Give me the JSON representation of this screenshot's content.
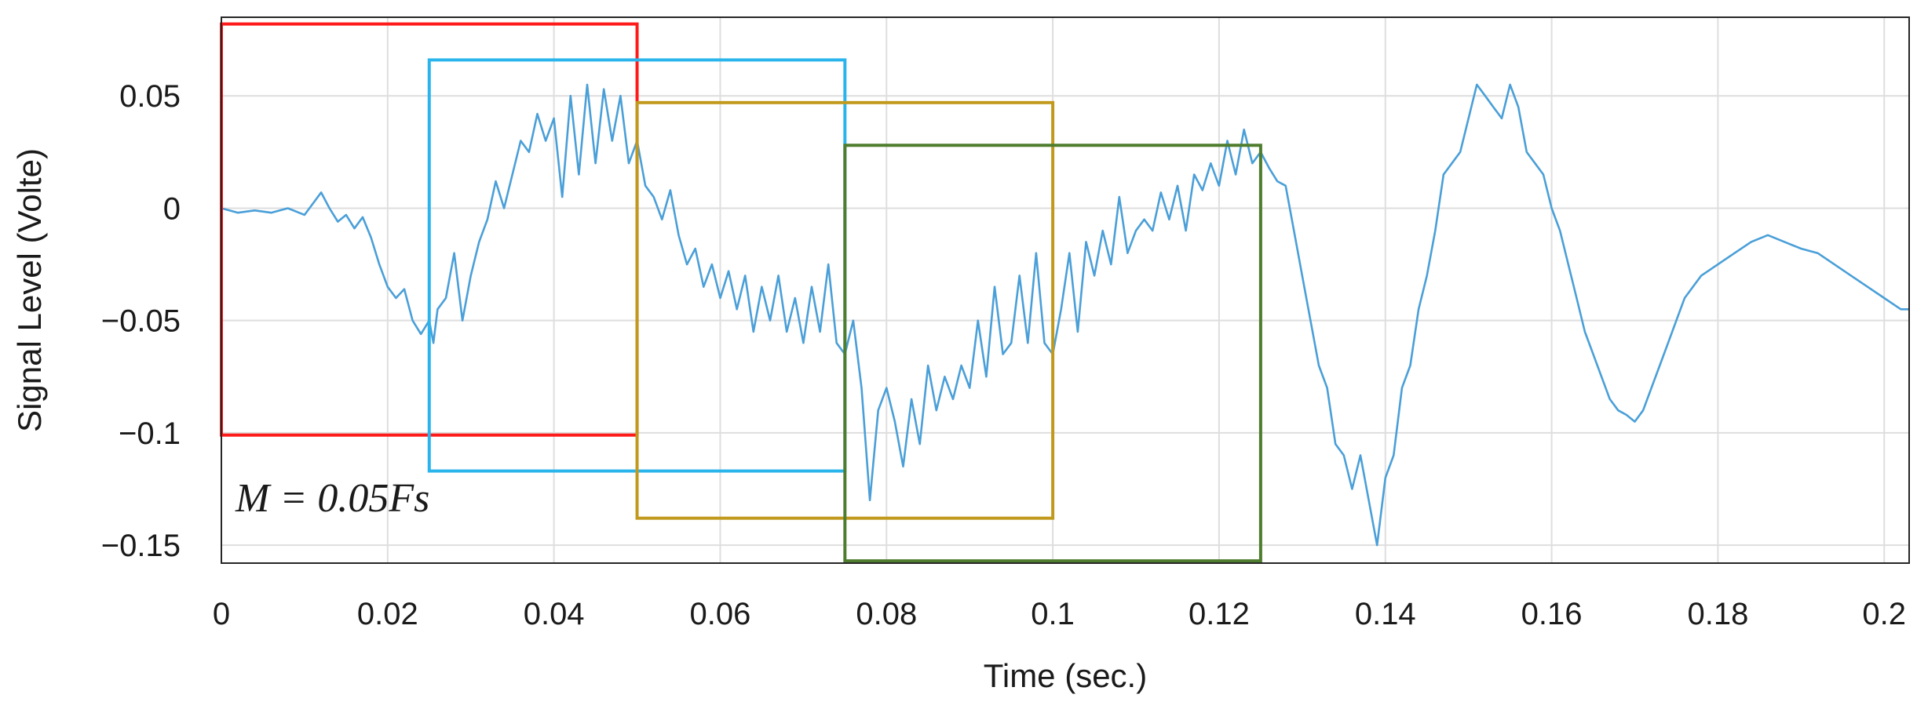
{
  "chart_data": {
    "type": "line",
    "title": "",
    "xlabel": "Time (sec.)",
    "ylabel": "Signal Level (Volte)",
    "xlim": [
      0,
      0.203
    ],
    "ylim": [
      -0.158,
      0.085
    ],
    "grid": true,
    "x_ticks": [
      0,
      0.02,
      0.04,
      0.06,
      0.08,
      0.1,
      0.12,
      0.14,
      0.16,
      0.18,
      0.2
    ],
    "x_tick_labels": [
      "0",
      "0.02",
      "0.04",
      "0.06",
      "0.08",
      "0.1",
      "0.12",
      "0.14",
      "0.16",
      "0.18",
      "0.2"
    ],
    "y_ticks": [
      0.05,
      0,
      -0.05,
      -0.1,
      -0.15
    ],
    "y_tick_labels": [
      "0.05",
      "0",
      "−0.05",
      "−0.1",
      "−0.15"
    ],
    "annotation": "M = 0.05Fs",
    "line_color": "#4a9fd8",
    "series": [
      {
        "values": [
          [
            0.0,
            0.0
          ],
          [
            0.002,
            -0.002
          ],
          [
            0.004,
            -0.001
          ],
          [
            0.006,
            -0.002
          ],
          [
            0.008,
            0.0
          ],
          [
            0.01,
            -0.003
          ],
          [
            0.012,
            0.007
          ],
          [
            0.013,
            0.0
          ],
          [
            0.014,
            -0.006
          ],
          [
            0.015,
            -0.003
          ],
          [
            0.016,
            -0.009
          ],
          [
            0.017,
            -0.004
          ],
          [
            0.018,
            -0.013
          ],
          [
            0.019,
            -0.025
          ],
          [
            0.02,
            -0.035
          ],
          [
            0.021,
            -0.04
          ],
          [
            0.022,
            -0.036
          ],
          [
            0.023,
            -0.05
          ],
          [
            0.024,
            -0.056
          ],
          [
            0.025,
            -0.05
          ],
          [
            0.0255,
            -0.06
          ],
          [
            0.026,
            -0.045
          ],
          [
            0.027,
            -0.04
          ],
          [
            0.028,
            -0.02
          ],
          [
            0.029,
            -0.05
          ],
          [
            0.03,
            -0.03
          ],
          [
            0.031,
            -0.015
          ],
          [
            0.032,
            -0.005
          ],
          [
            0.033,
            0.012
          ],
          [
            0.034,
            0.0
          ],
          [
            0.035,
            0.015
          ],
          [
            0.036,
            0.03
          ],
          [
            0.037,
            0.025
          ],
          [
            0.038,
            0.042
          ],
          [
            0.039,
            0.03
          ],
          [
            0.04,
            0.04
          ],
          [
            0.041,
            0.005
          ],
          [
            0.042,
            0.05
          ],
          [
            0.043,
            0.015
          ],
          [
            0.044,
            0.055
          ],
          [
            0.045,
            0.02
          ],
          [
            0.046,
            0.053
          ],
          [
            0.047,
            0.03
          ],
          [
            0.048,
            0.05
          ],
          [
            0.049,
            0.02
          ],
          [
            0.05,
            0.03
          ],
          [
            0.051,
            0.01
          ],
          [
            0.052,
            0.005
          ],
          [
            0.053,
            -0.005
          ],
          [
            0.054,
            0.008
          ],
          [
            0.055,
            -0.012
          ],
          [
            0.056,
            -0.025
          ],
          [
            0.057,
            -0.018
          ],
          [
            0.058,
            -0.035
          ],
          [
            0.059,
            -0.025
          ],
          [
            0.06,
            -0.04
          ],
          [
            0.061,
            -0.028
          ],
          [
            0.062,
            -0.045
          ],
          [
            0.063,
            -0.03
          ],
          [
            0.064,
            -0.055
          ],
          [
            0.065,
            -0.035
          ],
          [
            0.066,
            -0.05
          ],
          [
            0.067,
            -0.03
          ],
          [
            0.068,
            -0.055
          ],
          [
            0.069,
            -0.04
          ],
          [
            0.07,
            -0.06
          ],
          [
            0.071,
            -0.035
          ],
          [
            0.072,
            -0.055
          ],
          [
            0.073,
            -0.025
          ],
          [
            0.074,
            -0.06
          ],
          [
            0.075,
            -0.065
          ],
          [
            0.076,
            -0.05
          ],
          [
            0.077,
            -0.08
          ],
          [
            0.078,
            -0.13
          ],
          [
            0.079,
            -0.09
          ],
          [
            0.08,
            -0.08
          ],
          [
            0.081,
            -0.095
          ],
          [
            0.082,
            -0.115
          ],
          [
            0.083,
            -0.085
          ],
          [
            0.084,
            -0.105
          ],
          [
            0.085,
            -0.07
          ],
          [
            0.086,
            -0.09
          ],
          [
            0.087,
            -0.075
          ],
          [
            0.088,
            -0.085
          ],
          [
            0.089,
            -0.07
          ],
          [
            0.09,
            -0.08
          ],
          [
            0.091,
            -0.05
          ],
          [
            0.092,
            -0.075
          ],
          [
            0.093,
            -0.035
          ],
          [
            0.094,
            -0.065
          ],
          [
            0.095,
            -0.06
          ],
          [
            0.096,
            -0.03
          ],
          [
            0.097,
            -0.06
          ],
          [
            0.098,
            -0.02
          ],
          [
            0.099,
            -0.06
          ],
          [
            0.1,
            -0.065
          ],
          [
            0.101,
            -0.045
          ],
          [
            0.102,
            -0.02
          ],
          [
            0.103,
            -0.055
          ],
          [
            0.104,
            -0.015
          ],
          [
            0.105,
            -0.03
          ],
          [
            0.106,
            -0.01
          ],
          [
            0.107,
            -0.025
          ],
          [
            0.108,
            0.005
          ],
          [
            0.109,
            -0.02
          ],
          [
            0.11,
            -0.01
          ],
          [
            0.111,
            -0.005
          ],
          [
            0.112,
            -0.01
          ],
          [
            0.113,
            0.007
          ],
          [
            0.114,
            -0.005
          ],
          [
            0.115,
            0.01
          ],
          [
            0.116,
            -0.01
          ],
          [
            0.117,
            0.015
          ],
          [
            0.118,
            0.008
          ],
          [
            0.119,
            0.02
          ],
          [
            0.12,
            0.01
          ],
          [
            0.121,
            0.03
          ],
          [
            0.122,
            0.015
          ],
          [
            0.123,
            0.035
          ],
          [
            0.124,
            0.02
          ],
          [
            0.125,
            0.025
          ],
          [
            0.126,
            0.018
          ],
          [
            0.127,
            0.012
          ],
          [
            0.128,
            0.01
          ],
          [
            0.129,
            -0.01
          ],
          [
            0.13,
            -0.03
          ],
          [
            0.131,
            -0.05
          ],
          [
            0.132,
            -0.07
          ],
          [
            0.133,
            -0.08
          ],
          [
            0.134,
            -0.105
          ],
          [
            0.135,
            -0.11
          ],
          [
            0.136,
            -0.125
          ],
          [
            0.137,
            -0.11
          ],
          [
            0.138,
            -0.13
          ],
          [
            0.139,
            -0.15
          ],
          [
            0.14,
            -0.12
          ],
          [
            0.141,
            -0.11
          ],
          [
            0.142,
            -0.08
          ],
          [
            0.143,
            -0.07
          ],
          [
            0.144,
            -0.045
          ],
          [
            0.145,
            -0.03
          ],
          [
            0.146,
            -0.01
          ],
          [
            0.147,
            0.015
          ],
          [
            0.148,
            0.02
          ],
          [
            0.149,
            0.025
          ],
          [
            0.15,
            0.04
          ],
          [
            0.151,
            0.055
          ],
          [
            0.152,
            0.05
          ],
          [
            0.153,
            0.045
          ],
          [
            0.154,
            0.04
          ],
          [
            0.155,
            0.055
          ],
          [
            0.156,
            0.045
          ],
          [
            0.157,
            0.025
          ],
          [
            0.158,
            0.02
          ],
          [
            0.159,
            0.015
          ],
          [
            0.16,
            0.0
          ],
          [
            0.161,
            -0.01
          ],
          [
            0.162,
            -0.025
          ],
          [
            0.163,
            -0.04
          ],
          [
            0.164,
            -0.055
          ],
          [
            0.165,
            -0.065
          ],
          [
            0.166,
            -0.075
          ],
          [
            0.167,
            -0.085
          ],
          [
            0.168,
            -0.09
          ],
          [
            0.169,
            -0.092
          ],
          [
            0.17,
            -0.095
          ],
          [
            0.171,
            -0.09
          ],
          [
            0.172,
            -0.08
          ],
          [
            0.173,
            -0.07
          ],
          [
            0.174,
            -0.06
          ],
          [
            0.175,
            -0.05
          ],
          [
            0.176,
            -0.04
          ],
          [
            0.178,
            -0.03
          ],
          [
            0.18,
            -0.025
          ],
          [
            0.182,
            -0.02
          ],
          [
            0.184,
            -0.015
          ],
          [
            0.186,
            -0.012
          ],
          [
            0.188,
            -0.015
          ],
          [
            0.19,
            -0.018
          ],
          [
            0.192,
            -0.02
          ],
          [
            0.194,
            -0.025
          ],
          [
            0.196,
            -0.03
          ],
          [
            0.198,
            -0.035
          ],
          [
            0.2,
            -0.04
          ],
          [
            0.202,
            -0.045
          ],
          [
            0.203,
            -0.045
          ]
        ]
      }
    ],
    "windows": [
      {
        "x_start": 0.0,
        "x_end": 0.05,
        "y_top": 0.082,
        "y_bottom": -0.101,
        "color": "#ff1a1a"
      },
      {
        "x_start": 0.025,
        "x_end": 0.075,
        "y_top": 0.066,
        "y_bottom": -0.117,
        "color": "#2ab4ec"
      },
      {
        "x_start": 0.05,
        "x_end": 0.1,
        "y_top": 0.047,
        "y_bottom": -0.138,
        "color": "#c19a1d"
      },
      {
        "x_start": 0.075,
        "x_end": 0.125,
        "y_top": 0.028,
        "y_bottom": -0.157,
        "color": "#4f7d2e"
      }
    ]
  }
}
